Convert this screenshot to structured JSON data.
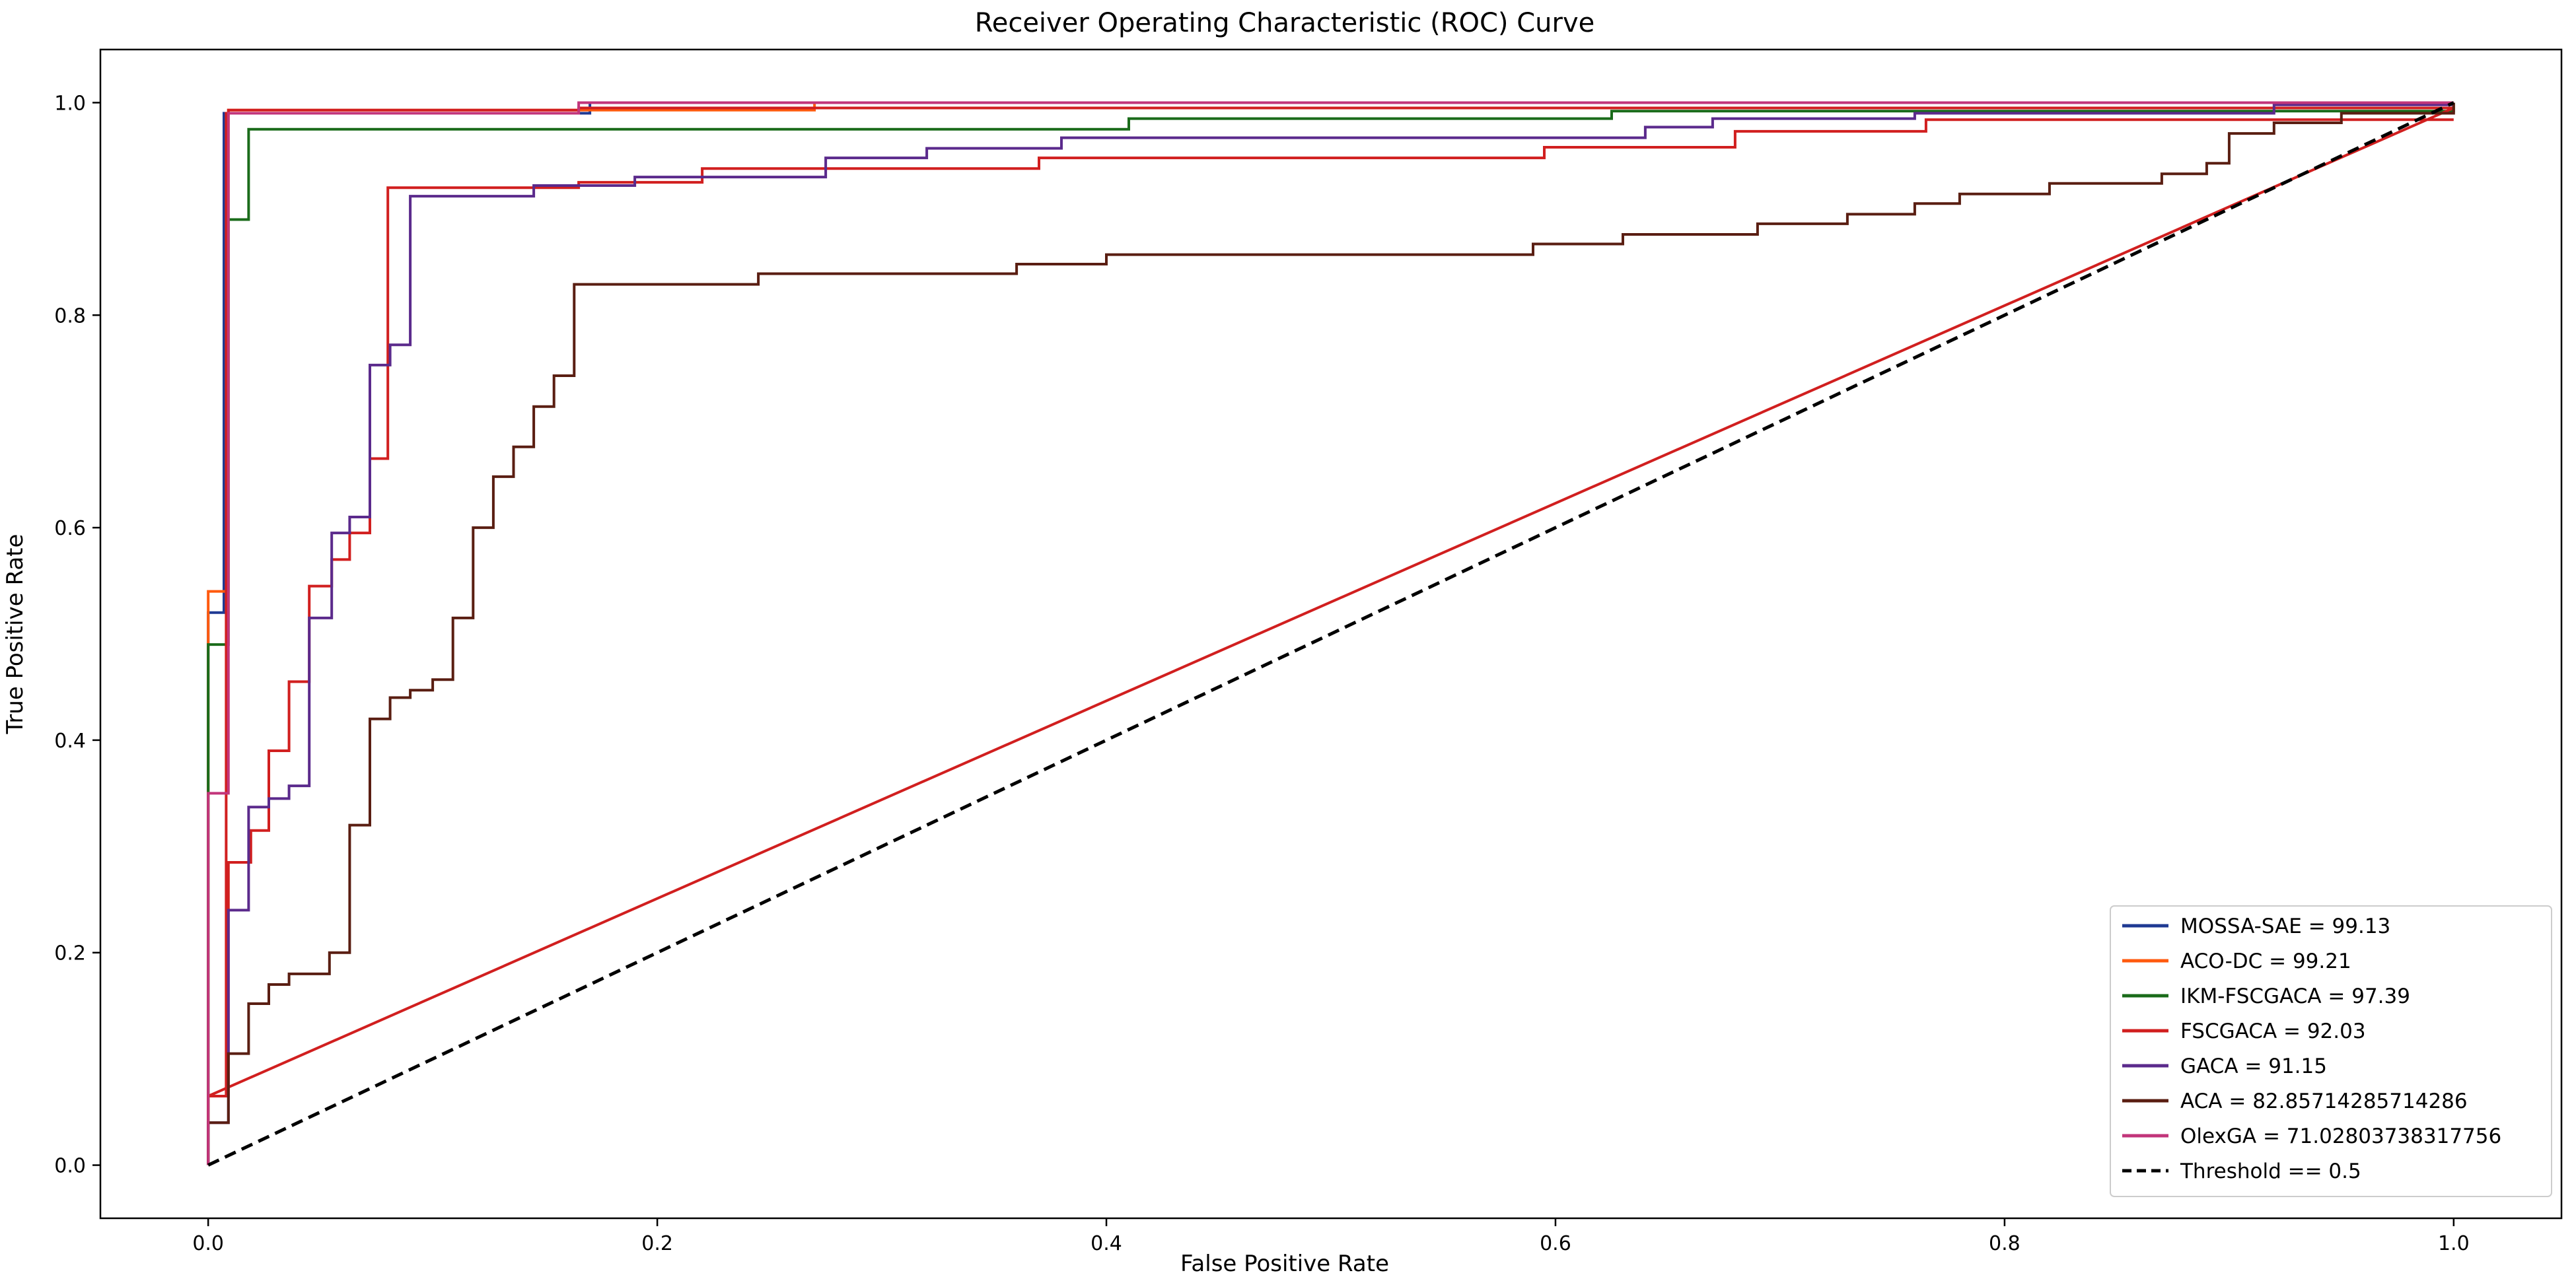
{
  "chart_data": {
    "type": "line",
    "title": "Receiver Operating Characteristic (ROC) Curve",
    "xlabel": "False Positive Rate",
    "ylabel": "True Positive Rate",
    "xlim": [
      -0.048,
      1.048
    ],
    "ylim": [
      -0.05,
      1.05
    ],
    "xticks": [
      0.0,
      0.2,
      0.4,
      0.6,
      0.8,
      1.0
    ],
    "yticks": [
      0.0,
      0.2,
      0.4,
      0.6,
      0.8,
      1.0
    ],
    "tick_labels": [
      "0.0",
      "0.2",
      "0.4",
      "0.6",
      "0.8",
      "1.0"
    ],
    "grid": false,
    "legend_position": "lower right",
    "series": [
      {
        "name": "MOSSA-SAE = 99.13",
        "color": "#1f3a93",
        "dashed": false,
        "points": [
          [
            0,
            0
          ],
          [
            0,
            0.52
          ],
          [
            0.007,
            0.52
          ],
          [
            0.007,
            0.99
          ],
          [
            0.17,
            0.99
          ],
          [
            0.17,
            1.0
          ],
          [
            1.0,
            1.0
          ]
        ]
      },
      {
        "name": "ACO-DC = 99.21",
        "color": "#ff5a0e",
        "dashed": false,
        "points": [
          [
            0,
            0
          ],
          [
            0,
            0.54
          ],
          [
            0.009,
            0.54
          ],
          [
            0.009,
            0.993
          ],
          [
            0.165,
            0.993
          ],
          [
            0.27,
            0.993
          ],
          [
            0.27,
            1.0
          ],
          [
            1.0,
            1.0
          ]
        ]
      },
      {
        "name": "IKM-FSCGACA = 97.39",
        "color": "#1a6b1a",
        "dashed": false,
        "points": [
          [
            0,
            0
          ],
          [
            0,
            0.35
          ],
          [
            0,
            0.49
          ],
          [
            0.009,
            0.49
          ],
          [
            0.009,
            0.89
          ],
          [
            0.018,
            0.89
          ],
          [
            0.018,
            0.975
          ],
          [
            0.41,
            0.975
          ],
          [
            0.41,
            0.985
          ],
          [
            0.625,
            0.985
          ],
          [
            0.625,
            0.992
          ],
          [
            1.0,
            0.992
          ],
          [
            1.0,
            1.0
          ]
        ]
      },
      {
        "name": "FSCGACA = 92.03",
        "color": "#d11f1f",
        "dashed": false,
        "points": [
          [
            0,
            0
          ],
          [
            0,
            0.065
          ],
          [
            0.008,
            0.065
          ],
          [
            0.008,
            0.99
          ],
          [
            0.009,
            0.99
          ],
          [
            0.009,
            0.993
          ],
          [
            0.165,
            0.993
          ],
          [
            0.165,
            0.995
          ],
          [
            1.0,
            0.995
          ],
          [
            0,
            0.065
          ],
          [
            0.009,
            0.065
          ],
          [
            0.009,
            0.285
          ],
          [
            0.019,
            0.285
          ],
          [
            0.019,
            0.315
          ],
          [
            0.027,
            0.315
          ],
          [
            0.027,
            0.39
          ],
          [
            0.036,
            0.39
          ],
          [
            0.036,
            0.455
          ],
          [
            0.045,
            0.455
          ],
          [
            0.045,
            0.545
          ],
          [
            0.055,
            0.545
          ],
          [
            0.055,
            0.57
          ],
          [
            0.063,
            0.57
          ],
          [
            0.063,
            0.595
          ],
          [
            0.072,
            0.595
          ],
          [
            0.072,
            0.665
          ],
          [
            0.08,
            0.665
          ],
          [
            0.08,
            0.92
          ],
          [
            0.165,
            0.92
          ],
          [
            0.165,
            0.925
          ],
          [
            0.22,
            0.925
          ],
          [
            0.22,
            0.938
          ],
          [
            0.37,
            0.938
          ],
          [
            0.37,
            0.948
          ],
          [
            0.595,
            0.948
          ],
          [
            0.595,
            0.958
          ],
          [
            0.68,
            0.958
          ],
          [
            0.68,
            0.973
          ],
          [
            0.765,
            0.973
          ],
          [
            0.765,
            0.984
          ],
          [
            1.0,
            0.984
          ]
        ]
      },
      {
        "name": "GACA = 91.15",
        "color": "#5b2a8c",
        "dashed": false,
        "points": [
          [
            0,
            0
          ],
          [
            0,
            0.04
          ],
          [
            0.009,
            0.04
          ],
          [
            0.009,
            0.24
          ],
          [
            0.018,
            0.24
          ],
          [
            0.018,
            0.337
          ],
          [
            0.027,
            0.337
          ],
          [
            0.027,
            0.345
          ],
          [
            0.036,
            0.345
          ],
          [
            0.036,
            0.357
          ],
          [
            0.045,
            0.357
          ],
          [
            0.045,
            0.515
          ],
          [
            0.055,
            0.515
          ],
          [
            0.055,
            0.595
          ],
          [
            0.063,
            0.595
          ],
          [
            0.063,
            0.61
          ],
          [
            0.072,
            0.61
          ],
          [
            0.072,
            0.753
          ],
          [
            0.081,
            0.753
          ],
          [
            0.081,
            0.772
          ],
          [
            0.09,
            0.772
          ],
          [
            0.09,
            0.912
          ],
          [
            0.145,
            0.912
          ],
          [
            0.145,
            0.922
          ],
          [
            0.19,
            0.922
          ],
          [
            0.19,
            0.93
          ],
          [
            0.275,
            0.93
          ],
          [
            0.275,
            0.948
          ],
          [
            0.32,
            0.948
          ],
          [
            0.32,
            0.957
          ],
          [
            0.38,
            0.957
          ],
          [
            0.38,
            0.967
          ],
          [
            0.64,
            0.967
          ],
          [
            0.64,
            0.977
          ],
          [
            0.67,
            0.977
          ],
          [
            0.67,
            0.985
          ],
          [
            0.76,
            0.985
          ],
          [
            0.76,
            0.99
          ],
          [
            0.92,
            0.99
          ],
          [
            0.92,
            0.998
          ],
          [
            1.0,
            0.998
          ]
        ]
      },
      {
        "name": "ACA = 82.85714285714286",
        "color": "#5a1e12",
        "dashed": false,
        "points": [
          [
            0,
            0
          ],
          [
            0,
            0.04
          ],
          [
            0.009,
            0.04
          ],
          [
            0.009,
            0.105
          ],
          [
            0.018,
            0.105
          ],
          [
            0.018,
            0.152
          ],
          [
            0.027,
            0.152
          ],
          [
            0.027,
            0.17
          ],
          [
            0.036,
            0.17
          ],
          [
            0.036,
            0.18
          ],
          [
            0.054,
            0.18
          ],
          [
            0.054,
            0.2
          ],
          [
            0.063,
            0.2
          ],
          [
            0.063,
            0.32
          ],
          [
            0.072,
            0.32
          ],
          [
            0.072,
            0.42
          ],
          [
            0.081,
            0.42
          ],
          [
            0.081,
            0.44
          ],
          [
            0.09,
            0.44
          ],
          [
            0.09,
            0.447
          ],
          [
            0.1,
            0.447
          ],
          [
            0.1,
            0.457
          ],
          [
            0.109,
            0.457
          ],
          [
            0.109,
            0.515
          ],
          [
            0.118,
            0.515
          ],
          [
            0.118,
            0.6
          ],
          [
            0.127,
            0.6
          ],
          [
            0.127,
            0.648
          ],
          [
            0.136,
            0.648
          ],
          [
            0.136,
            0.676
          ],
          [
            0.145,
            0.676
          ],
          [
            0.145,
            0.714
          ],
          [
            0.154,
            0.714
          ],
          [
            0.154,
            0.743
          ],
          [
            0.163,
            0.743
          ],
          [
            0.163,
            0.829
          ],
          [
            0.245,
            0.829
          ],
          [
            0.245,
            0.839
          ],
          [
            0.36,
            0.839
          ],
          [
            0.36,
            0.848
          ],
          [
            0.4,
            0.848
          ],
          [
            0.4,
            0.857
          ],
          [
            0.59,
            0.857
          ],
          [
            0.59,
            0.867
          ],
          [
            0.63,
            0.867
          ],
          [
            0.63,
            0.876
          ],
          [
            0.69,
            0.876
          ],
          [
            0.69,
            0.886
          ],
          [
            0.73,
            0.886
          ],
          [
            0.73,
            0.895
          ],
          [
            0.76,
            0.895
          ],
          [
            0.76,
            0.905
          ],
          [
            0.78,
            0.905
          ],
          [
            0.78,
            0.914
          ],
          [
            0.82,
            0.914
          ],
          [
            0.82,
            0.924
          ],
          [
            0.87,
            0.924
          ],
          [
            0.87,
            0.933
          ],
          [
            0.89,
            0.933
          ],
          [
            0.89,
            0.943
          ],
          [
            0.9,
            0.943
          ],
          [
            0.9,
            0.971
          ],
          [
            0.92,
            0.971
          ],
          [
            0.92,
            0.981
          ],
          [
            0.95,
            0.981
          ],
          [
            0.95,
            0.99
          ],
          [
            1.0,
            0.99
          ],
          [
            1.0,
            1.0
          ]
        ]
      },
      {
        "name": "OlexGA = 71.02803738317756",
        "color": "#c2357a",
        "dashed": false,
        "points": [
          [
            0,
            0
          ],
          [
            0,
            0.1
          ],
          [
            0,
            0.35
          ],
          [
            0.009,
            0.35
          ],
          [
            0.009,
            0.99
          ],
          [
            0.165,
            0.99
          ],
          [
            0.165,
            1.0
          ],
          [
            1.0,
            1.0
          ]
        ]
      },
      {
        "name": "Threshold == 0.5",
        "color": "#000000",
        "dashed": true,
        "points": [
          [
            0,
            0
          ],
          [
            1.0,
            1.0
          ]
        ]
      }
    ]
  }
}
